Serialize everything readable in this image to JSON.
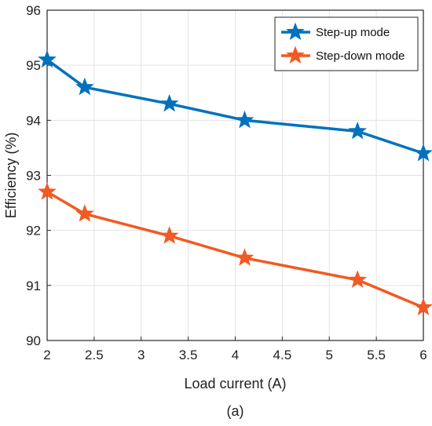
{
  "chart_data": {
    "type": "line",
    "xlabel": "Load current (A)",
    "ylabel": "Efficiency (%)",
    "caption": "(a)",
    "xlim": [
      2,
      6
    ],
    "ylim": [
      90,
      96
    ],
    "xticks": [
      "2",
      "2.5",
      "3",
      "3.5",
      "4",
      "4.5",
      "5",
      "5.5",
      "6"
    ],
    "yticks": [
      "90",
      "91",
      "92",
      "93",
      "94",
      "95",
      "96"
    ],
    "grid": true,
    "legend_position": "top-right",
    "series": [
      {
        "name": "Step-up mode",
        "color": "#0072BD",
        "marker": "star",
        "x": [
          2,
          2.4,
          3.3,
          4.1,
          5.3,
          6
        ],
        "y": [
          95.1,
          94.6,
          94.3,
          94.0,
          93.8,
          93.4
        ]
      },
      {
        "name": "Step-down mode",
        "color": "#F15A22",
        "marker": "star",
        "x": [
          2,
          2.4,
          3.3,
          4.1,
          5.3,
          6
        ],
        "y": [
          92.7,
          92.3,
          91.9,
          91.5,
          91.1,
          90.6
        ]
      }
    ]
  }
}
